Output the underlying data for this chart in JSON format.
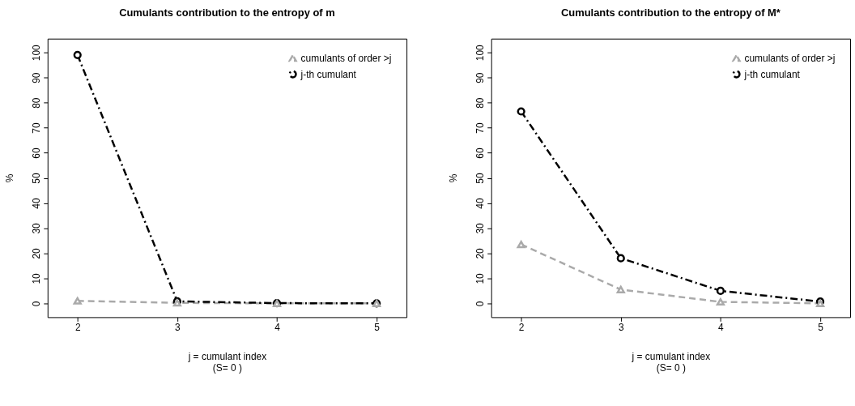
{
  "chart_data": [
    {
      "type": "line",
      "title": "Cumulants contribution to the entropy of m",
      "xlabel": "j = cumulant index\n(S= 0 )",
      "ylabel": "%",
      "x": [
        2,
        3,
        4,
        5
      ],
      "xlim": [
        1.7,
        5.3
      ],
      "ylim": [
        -5.5,
        105.5
      ],
      "xticks": [
        2,
        3,
        4,
        5
      ],
      "yticks": [
        0,
        10,
        20,
        30,
        40,
        50,
        60,
        70,
        80,
        90,
        100
      ],
      "grid": false,
      "legend": "top right",
      "series": [
        {
          "name": "cumulants of order >j",
          "color": "#aaaaaa",
          "marker": "triangle",
          "line_style": "dashed",
          "values": [
            1.0,
            0.2,
            0.0,
            0.0
          ]
        },
        {
          "name": "j-th cumulant",
          "color": "#000000",
          "marker": "circle",
          "line_style": "dashdot",
          "values": [
            99.0,
            0.8,
            0.1,
            0.0
          ]
        }
      ]
    },
    {
      "type": "line",
      "title": "Cumulants contribution to the entropy of M*",
      "xlabel": "j = cumulant index\n(S= 0 )",
      "ylabel": "%",
      "x": [
        2,
        3,
        4,
        5
      ],
      "xlim": [
        1.7,
        5.3
      ],
      "ylim": [
        -5.5,
        105.5
      ],
      "xticks": [
        2,
        3,
        4,
        5
      ],
      "yticks": [
        0,
        10,
        20,
        30,
        40,
        50,
        60,
        70,
        80,
        90,
        100
      ],
      "grid": false,
      "legend": "top right",
      "series": [
        {
          "name": "cumulants of order >j",
          "color": "#aaaaaa",
          "marker": "triangle",
          "line_style": "dashed",
          "values": [
            23.5,
            5.5,
            0.6,
            0.0
          ]
        },
        {
          "name": "j-th cumulant",
          "color": "#000000",
          "marker": "circle",
          "line_style": "dashdot",
          "values": [
            76.5,
            18.0,
            5.0,
            0.7
          ]
        }
      ]
    }
  ]
}
